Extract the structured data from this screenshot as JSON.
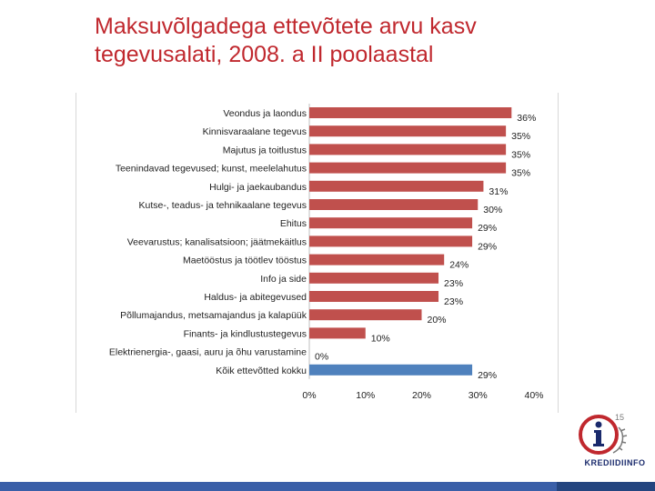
{
  "title": {
    "line1": "Maksuvõlgadega ettevõtete arvu kasv",
    "line2": "tegevusalati, 2008. a II poolaastal"
  },
  "logo": {
    "label": "KREDIIDIINFO",
    "icon": "info-i-icon",
    "badge": "15"
  },
  "colors": {
    "title": "#c0282e",
    "bar_red": "#c0504d",
    "bar_blue": "#4f81bd",
    "bottom_bar": "#3a5fa8"
  },
  "chart_data": {
    "type": "bar",
    "orientation": "horizontal",
    "categories": [
      "Veondus ja laondus",
      "Kinnisvaraalane tegevus",
      "Majutus ja toitlustus",
      "Teenindavad tegevused; kunst, meelelahutus",
      "Hulgi- ja jaekaubandus",
      "Kutse-, teadus- ja tehnikaalane tegevus",
      "Ehitus",
      "Veevarustus; kanalisatsioon; jäätmekäitlus",
      "Maetööstus ja töötlev tööstus",
      "Info ja side",
      "Haldus- ja abitegevused",
      "Põllumajandus, metsamajandus ja kalapüük",
      "Finants- ja kindlustustegevus",
      "Elektrienergia-, gaasi, auru ja õhu varustamine",
      "Kõik ettevõtted kokku"
    ],
    "values": [
      36,
      35,
      35,
      35,
      31,
      30,
      29,
      29,
      24,
      23,
      23,
      20,
      10,
      0,
      29
    ],
    "value_labels": [
      "36%",
      "35%",
      "35%",
      "35%",
      "31%",
      "30%",
      "29%",
      "29%",
      "24%",
      "23%",
      "23%",
      "20%",
      "10%",
      "0%",
      "29%"
    ],
    "highlight_index": 14,
    "xlim": [
      0,
      40
    ],
    "xticks": [
      "0%",
      "10%",
      "20%",
      "30%",
      "40%"
    ],
    "grid": false,
    "legend": "none"
  }
}
